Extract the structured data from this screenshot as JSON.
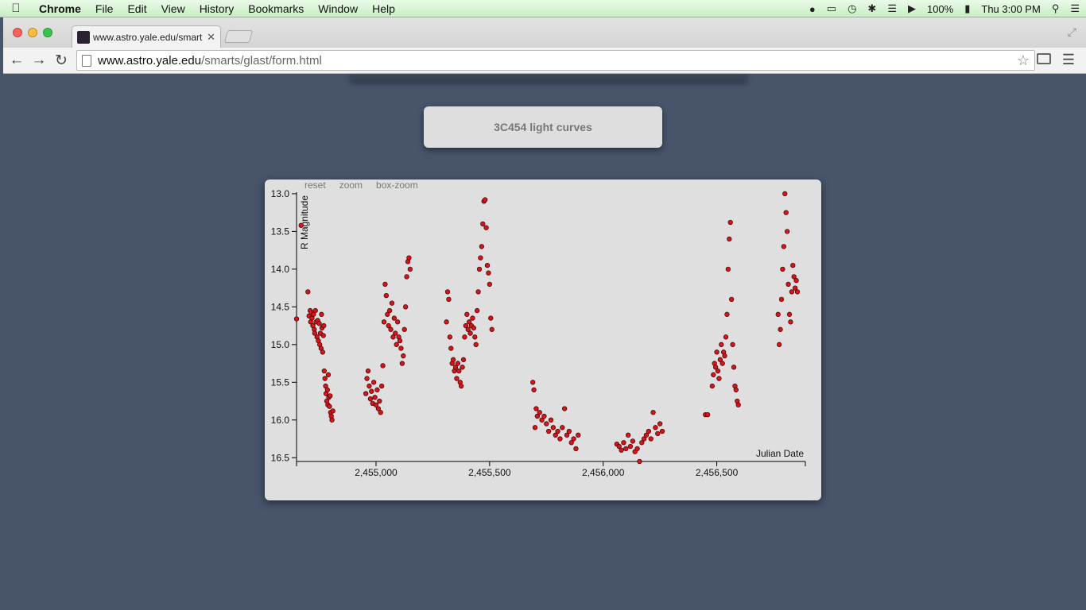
{
  "menubar": {
    "app": "Chrome",
    "items": [
      "File",
      "Edit",
      "View",
      "History",
      "Bookmarks",
      "Window",
      "Help"
    ],
    "battery": "100%",
    "clock": "Thu 3:00 PM"
  },
  "browser": {
    "tab_title": "www.astro.yale.edu/smart",
    "url_host": "www.astro.yale.edu",
    "url_path": "/smarts/glast/form.html"
  },
  "page": {
    "title": "3C454 light curves",
    "controls": [
      "reset",
      "zoom",
      "box-zoom"
    ]
  },
  "colors": {
    "background": "#47546a",
    "point_fill": "#d8141a",
    "point_stroke": "#3a0000"
  },
  "chart_data": {
    "type": "scatter",
    "title": "3C454 light curves",
    "xlabel": "Julian Date",
    "ylabel": "R Magnitude",
    "xlim": [
      2454650,
      2456890
    ],
    "ylim": [
      16.55,
      12.98
    ],
    "y_inverted": true,
    "xticks": [
      2455000,
      2455500,
      2456000,
      2456500
    ],
    "xtick_labels": [
      "2,455,000",
      "2,455,500",
      "2,456,000",
      "2,456,500"
    ],
    "yticks": [
      13.0,
      13.5,
      14.0,
      14.5,
      15.0,
      15.5,
      16.0,
      16.5
    ],
    "ytick_labels": [
      "13.0",
      "13.5",
      "14.0",
      "14.5",
      "15.0",
      "15.5",
      "16.0",
      "16.5"
    ],
    "grid": false,
    "series": [
      {
        "points": [
          [
            2454650,
            14.66
          ],
          [
            2454670,
            13.42
          ],
          [
            2454700,
            14.3
          ],
          [
            2454705,
            14.62
          ],
          [
            2454710,
            14.55
          ],
          [
            2454712,
            14.7
          ],
          [
            2454715,
            14.58
          ],
          [
            2454718,
            14.65
          ],
          [
            2454722,
            14.75
          ],
          [
            2454725,
            14.6
          ],
          [
            2454728,
            14.8
          ],
          [
            2454730,
            14.85
          ],
          [
            2454733,
            14.55
          ],
          [
            2454736,
            14.7
          ],
          [
            2454740,
            14.9
          ],
          [
            2454743,
            14.68
          ],
          [
            2454746,
            14.95
          ],
          [
            2454750,
            14.72
          ],
          [
            2454752,
            15.0
          ],
          [
            2454755,
            14.85
          ],
          [
            2454758,
            15.05
          ],
          [
            2454760,
            14.6
          ],
          [
            2454762,
            14.78
          ],
          [
            2454765,
            15.1
          ],
          [
            2454768,
            14.88
          ],
          [
            2454770,
            14.75
          ],
          [
            2454772,
            15.35
          ],
          [
            2454775,
            15.45
          ],
          [
            2454778,
            15.55
          ],
          [
            2454780,
            15.65
          ],
          [
            2454783,
            15.75
          ],
          [
            2454786,
            15.6
          ],
          [
            2454788,
            15.8
          ],
          [
            2454790,
            15.4
          ],
          [
            2454792,
            15.7
          ],
          [
            2454795,
            15.82
          ],
          [
            2454798,
            15.68
          ],
          [
            2454800,
            15.9
          ],
          [
            2454803,
            15.95
          ],
          [
            2454806,
            16.0
          ],
          [
            2454810,
            15.88
          ],
          [
            2454955,
            15.65
          ],
          [
            2454960,
            15.45
          ],
          [
            2454965,
            15.35
          ],
          [
            2454970,
            15.55
          ],
          [
            2454975,
            15.72
          ],
          [
            2454980,
            15.62
          ],
          [
            2454985,
            15.78
          ],
          [
            2454990,
            15.5
          ],
          [
            2454995,
            15.7
          ],
          [
            2455000,
            15.8
          ],
          [
            2455005,
            15.6
          ],
          [
            2455010,
            15.85
          ],
          [
            2455015,
            15.75
          ],
          [
            2455020,
            15.9
          ],
          [
            2455025,
            15.55
          ],
          [
            2455030,
            15.28
          ],
          [
            2455035,
            14.7
          ],
          [
            2455040,
            14.2
          ],
          [
            2455045,
            14.35
          ],
          [
            2455050,
            14.6
          ],
          [
            2455055,
            14.75
          ],
          [
            2455060,
            14.55
          ],
          [
            2455065,
            14.8
          ],
          [
            2455070,
            14.45
          ],
          [
            2455075,
            14.9
          ],
          [
            2455080,
            14.65
          ],
          [
            2455085,
            14.85
          ],
          [
            2455090,
            15.0
          ],
          [
            2455095,
            14.7
          ],
          [
            2455100,
            14.9
          ],
          [
            2455105,
            14.95
          ],
          [
            2455110,
            15.05
          ],
          [
            2455115,
            15.25
          ],
          [
            2455120,
            15.15
          ],
          [
            2455125,
            14.8
          ],
          [
            2455130,
            14.5
          ],
          [
            2455135,
            14.1
          ],
          [
            2455140,
            13.9
          ],
          [
            2455145,
            13.85
          ],
          [
            2455150,
            14.0
          ],
          [
            2455310,
            14.7
          ],
          [
            2455315,
            14.3
          ],
          [
            2455320,
            14.4
          ],
          [
            2455325,
            14.9
          ],
          [
            2455330,
            15.05
          ],
          [
            2455335,
            15.25
          ],
          [
            2455340,
            15.2
          ],
          [
            2455345,
            15.35
          ],
          [
            2455350,
            15.3
          ],
          [
            2455355,
            15.45
          ],
          [
            2455360,
            15.25
          ],
          [
            2455365,
            15.35
          ],
          [
            2455370,
            15.5
          ],
          [
            2455375,
            15.55
          ],
          [
            2455380,
            15.3
          ],
          [
            2455385,
            15.2
          ],
          [
            2455390,
            14.9
          ],
          [
            2455395,
            14.75
          ],
          [
            2455400,
            14.6
          ],
          [
            2455405,
            14.8
          ],
          [
            2455410,
            14.7
          ],
          [
            2455415,
            14.85
          ],
          [
            2455420,
            14.75
          ],
          [
            2455425,
            14.65
          ],
          [
            2455430,
            14.78
          ],
          [
            2455435,
            14.9
          ],
          [
            2455440,
            15.0
          ],
          [
            2455445,
            14.55
          ],
          [
            2455450,
            14.3
          ],
          [
            2455455,
            14.0
          ],
          [
            2455460,
            13.85
          ],
          [
            2455465,
            13.7
          ],
          [
            2455470,
            13.4
          ],
          [
            2455475,
            13.1
          ],
          [
            2455480,
            13.08
          ],
          [
            2455485,
            13.45
          ],
          [
            2455490,
            13.95
          ],
          [
            2455495,
            14.05
          ],
          [
            2455500,
            14.2
          ],
          [
            2455505,
            14.65
          ],
          [
            2455510,
            14.8
          ],
          [
            2455690,
            15.5
          ],
          [
            2455695,
            15.6
          ],
          [
            2455700,
            16.1
          ],
          [
            2455705,
            15.85
          ],
          [
            2455710,
            15.95
          ],
          [
            2455720,
            15.9
          ],
          [
            2455730,
            16.0
          ],
          [
            2455740,
            15.95
          ],
          [
            2455750,
            16.05
          ],
          [
            2455760,
            16.15
          ],
          [
            2455770,
            16.0
          ],
          [
            2455780,
            16.1
          ],
          [
            2455790,
            16.2
          ],
          [
            2455800,
            16.15
          ],
          [
            2455810,
            16.25
          ],
          [
            2455820,
            16.1
          ],
          [
            2455830,
            15.85
          ],
          [
            2455840,
            16.2
          ],
          [
            2455850,
            16.15
          ],
          [
            2455860,
            16.3
          ],
          [
            2455870,
            16.25
          ],
          [
            2455880,
            16.38
          ],
          [
            2455890,
            16.2
          ],
          [
            2456060,
            16.32
          ],
          [
            2456070,
            16.35
          ],
          [
            2456080,
            16.4
          ],
          [
            2456090,
            16.3
          ],
          [
            2456100,
            16.38
          ],
          [
            2456110,
            16.2
          ],
          [
            2456120,
            16.35
          ],
          [
            2456130,
            16.28
          ],
          [
            2456140,
            16.42
          ],
          [
            2456150,
            16.38
          ],
          [
            2456160,
            16.55
          ],
          [
            2456170,
            16.3
          ],
          [
            2456180,
            16.25
          ],
          [
            2456190,
            16.2
          ],
          [
            2456200,
            16.15
          ],
          [
            2456210,
            16.25
          ],
          [
            2456220,
            15.9
          ],
          [
            2456230,
            16.1
          ],
          [
            2456240,
            16.18
          ],
          [
            2456250,
            16.05
          ],
          [
            2456260,
            16.15
          ],
          [
            2456450,
            15.93
          ],
          [
            2456460,
            15.93
          ],
          [
            2456480,
            15.55
          ],
          [
            2456485,
            15.4
          ],
          [
            2456490,
            15.25
          ],
          [
            2456495,
            15.3
          ],
          [
            2456500,
            15.1
          ],
          [
            2456505,
            15.35
          ],
          [
            2456510,
            15.45
          ],
          [
            2456515,
            15.2
          ],
          [
            2456520,
            15.0
          ],
          [
            2456525,
            15.25
          ],
          [
            2456530,
            15.1
          ],
          [
            2456535,
            15.15
          ],
          [
            2456540,
            14.9
          ],
          [
            2456545,
            14.6
          ],
          [
            2456550,
            14.0
          ],
          [
            2456555,
            13.6
          ],
          [
            2456560,
            13.38
          ],
          [
            2456565,
            14.4
          ],
          [
            2456570,
            15.0
          ],
          [
            2456575,
            15.3
          ],
          [
            2456580,
            15.55
          ],
          [
            2456585,
            15.6
          ],
          [
            2456590,
            15.75
          ],
          [
            2456595,
            15.8
          ],
          [
            2456770,
            14.6
          ],
          [
            2456775,
            15.0
          ],
          [
            2456780,
            14.8
          ],
          [
            2456785,
            14.4
          ],
          [
            2456790,
            14.0
          ],
          [
            2456795,
            13.7
          ],
          [
            2456800,
            13.0
          ],
          [
            2456805,
            13.25
          ],
          [
            2456810,
            13.5
          ],
          [
            2456815,
            14.2
          ],
          [
            2456820,
            14.6
          ],
          [
            2456825,
            14.7
          ],
          [
            2456830,
            14.3
          ],
          [
            2456835,
            13.95
          ],
          [
            2456840,
            14.1
          ],
          [
            2456845,
            14.25
          ],
          [
            2456850,
            14.15
          ],
          [
            2456855,
            14.3
          ]
        ]
      }
    ]
  }
}
